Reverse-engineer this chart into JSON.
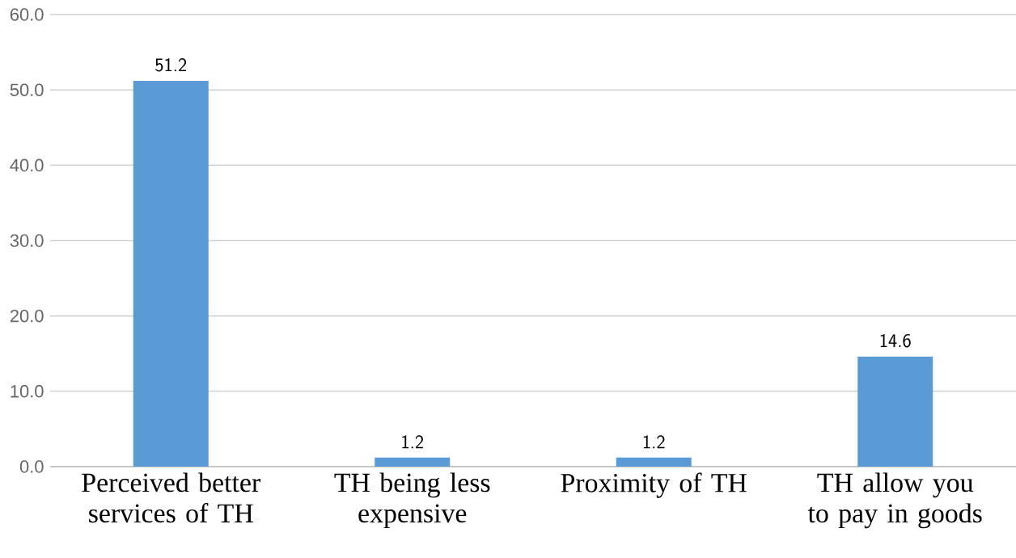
{
  "chart_data": {
    "type": "bar",
    "categories": [
      "Perceived better services of TH",
      "TH being less expensive",
      "Proximity of TH",
      "TH allow you to pay in goods"
    ],
    "values": [
      51.2,
      1.2,
      1.2,
      14.6
    ],
    "color": "#5b9bd5",
    "ylim": [
      0,
      60
    ],
    "yticks": [
      {
        "value": 0,
        "label": "0.0"
      },
      {
        "value": 10,
        "label": "10.0"
      },
      {
        "value": 20,
        "label": "20.0"
      },
      {
        "value": 30,
        "label": "30.0"
      },
      {
        "value": 40,
        "label": "40.0"
      },
      {
        "value": 50,
        "label": "50.0"
      },
      {
        "value": 60,
        "label": "60.0"
      }
    ],
    "grid": "y",
    "data_labels": true
  }
}
